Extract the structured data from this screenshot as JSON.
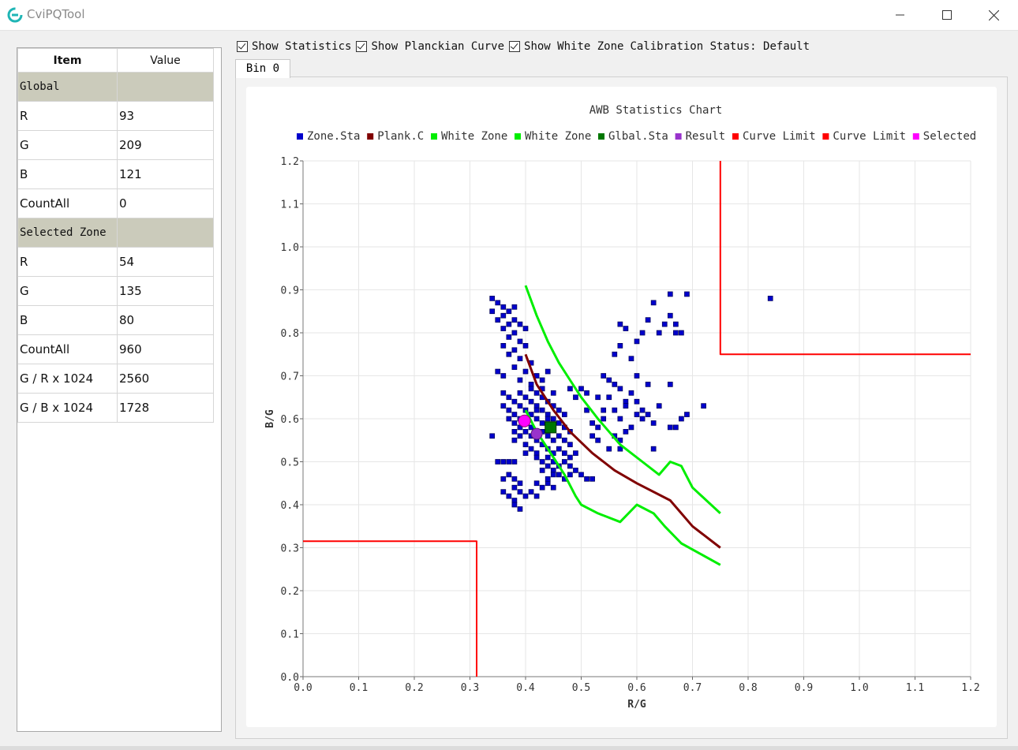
{
  "window": {
    "title": "CviPQTool",
    "accent_color": "#1fb5b5"
  },
  "toolbar": {
    "show_statistics": "Show Statistics",
    "show_planckian": "Show Planckian Curve",
    "show_white_zone": "Show White Zone",
    "status": "Calibration Status: Default"
  },
  "tabs": [
    {
      "label": "Bin 0"
    }
  ],
  "table": {
    "headers": [
      "Item",
      "Value"
    ],
    "rows": [
      {
        "section": true,
        "item": "Global",
        "value": ""
      },
      {
        "item": "R",
        "value": "93"
      },
      {
        "item": "G",
        "value": "209"
      },
      {
        "item": "B",
        "value": "121"
      },
      {
        "item": "CountAll",
        "value": "0"
      },
      {
        "section": true,
        "item": "Selected Zone",
        "value": ""
      },
      {
        "item": "R",
        "value": "54"
      },
      {
        "item": "G",
        "value": "135"
      },
      {
        "item": "B",
        "value": "80"
      },
      {
        "item": "CountAll",
        "value": "960"
      },
      {
        "item": "G / R x 1024",
        "value": "2560"
      },
      {
        "item": "G / B x 1024",
        "value": "1728"
      }
    ]
  },
  "chart_data": {
    "type": "scatter",
    "title": "AWB Statistics Chart",
    "xlabel": "R/G",
    "ylabel": "B/G",
    "xlim": [
      0.0,
      1.2
    ],
    "ylim": [
      0.0,
      1.2
    ],
    "x_ticks": [
      "0.0",
      "0.1",
      "0.2",
      "0.3",
      "0.4",
      "0.5",
      "0.6",
      "0.7",
      "0.8",
      "0.9",
      "1.0",
      "1.1",
      "1.2"
    ],
    "y_ticks": [
      "0.0",
      "0.1",
      "0.2",
      "0.3",
      "0.4",
      "0.5",
      "0.6",
      "0.7",
      "0.8",
      "0.9",
      "1.0",
      "1.1",
      "1.2"
    ],
    "grid": true,
    "legend_position": "top",
    "legend": [
      {
        "name": "Zone.Sta",
        "color": "#0000cc"
      },
      {
        "name": "Plank.C",
        "color": "#800000"
      },
      {
        "name": "White Zone",
        "color": "#00ee00"
      },
      {
        "name": "White Zone",
        "color": "#00ee00"
      },
      {
        "name": "Glbal.Sta",
        "color": "#007700"
      },
      {
        "name": "Result",
        "color": "#9933cc"
      },
      {
        "name": "Curve Limit",
        "color": "#ff0000"
      },
      {
        "name": "Curve Limit",
        "color": "#ff0000"
      },
      {
        "name": "Selected",
        "color": "#ff00ff"
      }
    ],
    "planckian_curve": [
      [
        0.4,
        0.75
      ],
      [
        0.42,
        0.68
      ],
      [
        0.45,
        0.62
      ],
      [
        0.48,
        0.57
      ],
      [
        0.52,
        0.52
      ],
      [
        0.56,
        0.48
      ],
      [
        0.6,
        0.45
      ],
      [
        0.66,
        0.41
      ],
      [
        0.7,
        0.35
      ],
      [
        0.75,
        0.3
      ]
    ],
    "white_zone_upper": [
      [
        0.4,
        0.91
      ],
      [
        0.42,
        0.84
      ],
      [
        0.44,
        0.78
      ],
      [
        0.46,
        0.73
      ],
      [
        0.48,
        0.69
      ],
      [
        0.5,
        0.65
      ],
      [
        0.53,
        0.6
      ],
      [
        0.57,
        0.54
      ],
      [
        0.61,
        0.5
      ],
      [
        0.64,
        0.47
      ],
      [
        0.66,
        0.5
      ],
      [
        0.68,
        0.49
      ],
      [
        0.7,
        0.44
      ],
      [
        0.75,
        0.38
      ]
    ],
    "white_zone_lower": [
      [
        0.4,
        0.62
      ],
      [
        0.42,
        0.57
      ],
      [
        0.45,
        0.51
      ],
      [
        0.47,
        0.47
      ],
      [
        0.49,
        0.42
      ],
      [
        0.5,
        0.4
      ],
      [
        0.53,
        0.38
      ],
      [
        0.57,
        0.36
      ],
      [
        0.6,
        0.4
      ],
      [
        0.63,
        0.38
      ],
      [
        0.65,
        0.35
      ],
      [
        0.68,
        0.31
      ],
      [
        0.75,
        0.26
      ]
    ],
    "curve_limit_low": [
      [
        0.0,
        0.315
      ],
      [
        0.312,
        0.315
      ],
      [
        0.312,
        0.0
      ]
    ],
    "curve_limit_high": [
      [
        0.75,
        1.2
      ],
      [
        0.75,
        0.75
      ],
      [
        1.2,
        0.75
      ]
    ],
    "global_sta": [
      0.445,
      0.58
    ],
    "result": [
      0.42,
      0.565
    ],
    "selected": [
      0.398,
      0.595
    ],
    "zone_sta_points": [
      [
        0.34,
        0.88
      ],
      [
        0.35,
        0.87
      ],
      [
        0.36,
        0.86
      ],
      [
        0.34,
        0.85
      ],
      [
        0.36,
        0.84
      ],
      [
        0.37,
        0.85
      ],
      [
        0.38,
        0.86
      ],
      [
        0.35,
        0.83
      ],
      [
        0.37,
        0.82
      ],
      [
        0.38,
        0.83
      ],
      [
        0.39,
        0.82
      ],
      [
        0.36,
        0.81
      ],
      [
        0.38,
        0.8
      ],
      [
        0.4,
        0.81
      ],
      [
        0.37,
        0.79
      ],
      [
        0.39,
        0.78
      ],
      [
        0.36,
        0.77
      ],
      [
        0.38,
        0.76
      ],
      [
        0.4,
        0.77
      ],
      [
        0.37,
        0.75
      ],
      [
        0.39,
        0.74
      ],
      [
        0.41,
        0.73
      ],
      [
        0.38,
        0.72
      ],
      [
        0.4,
        0.71
      ],
      [
        0.42,
        0.7
      ],
      [
        0.39,
        0.69
      ],
      [
        0.41,
        0.68
      ],
      [
        0.43,
        0.69
      ],
      [
        0.44,
        0.71
      ],
      [
        0.36,
        0.7
      ],
      [
        0.35,
        0.71
      ],
      [
        0.36,
        0.66
      ],
      [
        0.37,
        0.65
      ],
      [
        0.38,
        0.64
      ],
      [
        0.39,
        0.66
      ],
      [
        0.4,
        0.65
      ],
      [
        0.41,
        0.64
      ],
      [
        0.42,
        0.66
      ],
      [
        0.43,
        0.65
      ],
      [
        0.44,
        0.64
      ],
      [
        0.45,
        0.66
      ],
      [
        0.36,
        0.63
      ],
      [
        0.37,
        0.62
      ],
      [
        0.38,
        0.61
      ],
      [
        0.39,
        0.63
      ],
      [
        0.4,
        0.62
      ],
      [
        0.41,
        0.61
      ],
      [
        0.42,
        0.63
      ],
      [
        0.43,
        0.62
      ],
      [
        0.44,
        0.61
      ],
      [
        0.45,
        0.63
      ],
      [
        0.46,
        0.62
      ],
      [
        0.47,
        0.61
      ],
      [
        0.37,
        0.6
      ],
      [
        0.38,
        0.59
      ],
      [
        0.39,
        0.6
      ],
      [
        0.4,
        0.59
      ],
      [
        0.41,
        0.58
      ],
      [
        0.42,
        0.6
      ],
      [
        0.43,
        0.59
      ],
      [
        0.44,
        0.58
      ],
      [
        0.45,
        0.6
      ],
      [
        0.46,
        0.59
      ],
      [
        0.47,
        0.58
      ],
      [
        0.48,
        0.57
      ],
      [
        0.38,
        0.57
      ],
      [
        0.39,
        0.56
      ],
      [
        0.4,
        0.57
      ],
      [
        0.41,
        0.56
      ],
      [
        0.42,
        0.55
      ],
      [
        0.43,
        0.57
      ],
      [
        0.44,
        0.56
      ],
      [
        0.45,
        0.55
      ],
      [
        0.46,
        0.56
      ],
      [
        0.47,
        0.55
      ],
      [
        0.48,
        0.54
      ],
      [
        0.4,
        0.54
      ],
      [
        0.41,
        0.53
      ],
      [
        0.42,
        0.52
      ],
      [
        0.43,
        0.54
      ],
      [
        0.44,
        0.53
      ],
      [
        0.45,
        0.52
      ],
      [
        0.46,
        0.53
      ],
      [
        0.47,
        0.52
      ],
      [
        0.48,
        0.51
      ],
      [
        0.49,
        0.52
      ],
      [
        0.42,
        0.51
      ],
      [
        0.43,
        0.5
      ],
      [
        0.44,
        0.51
      ],
      [
        0.45,
        0.5
      ],
      [
        0.46,
        0.49
      ],
      [
        0.47,
        0.5
      ],
      [
        0.48,
        0.49
      ],
      [
        0.49,
        0.48
      ],
      [
        0.5,
        0.47
      ],
      [
        0.46,
        0.47
      ],
      [
        0.47,
        0.46
      ],
      [
        0.48,
        0.47
      ],
      [
        0.51,
        0.46
      ],
      [
        0.52,
        0.46
      ],
      [
        0.45,
        0.48
      ],
      [
        0.44,
        0.49
      ],
      [
        0.43,
        0.48
      ],
      [
        0.41,
        0.67
      ],
      [
        0.43,
        0.67
      ],
      [
        0.42,
        0.62
      ],
      [
        0.44,
        0.6
      ],
      [
        0.39,
        0.58
      ],
      [
        0.38,
        0.55
      ],
      [
        0.34,
        0.56
      ],
      [
        0.35,
        0.5
      ],
      [
        0.36,
        0.5
      ],
      [
        0.37,
        0.5
      ],
      [
        0.38,
        0.5
      ],
      [
        0.4,
        0.52
      ],
      [
        0.36,
        0.46
      ],
      [
        0.37,
        0.47
      ],
      [
        0.38,
        0.46
      ],
      [
        0.39,
        0.45
      ],
      [
        0.36,
        0.43
      ],
      [
        0.37,
        0.42
      ],
      [
        0.38,
        0.44
      ],
      [
        0.39,
        0.43
      ],
      [
        0.4,
        0.42
      ],
      [
        0.38,
        0.41
      ],
      [
        0.39,
        0.39
      ],
      [
        0.38,
        0.4
      ],
      [
        0.41,
        0.43
      ],
      [
        0.42,
        0.45
      ],
      [
        0.43,
        0.44
      ],
      [
        0.42,
        0.42
      ],
      [
        0.44,
        0.45
      ],
      [
        0.45,
        0.44
      ],
      [
        0.44,
        0.46
      ],
      [
        0.45,
        0.47
      ],
      [
        0.48,
        0.67
      ],
      [
        0.49,
        0.65
      ],
      [
        0.5,
        0.67
      ],
      [
        0.51,
        0.66
      ],
      [
        0.51,
        0.62
      ],
      [
        0.52,
        0.59
      ],
      [
        0.53,
        0.58
      ],
      [
        0.54,
        0.6
      ],
      [
        0.55,
        0.65
      ],
      [
        0.56,
        0.62
      ],
      [
        0.57,
        0.6
      ],
      [
        0.58,
        0.64
      ],
      [
        0.59,
        0.66
      ],
      [
        0.6,
        0.64
      ],
      [
        0.6,
        0.61
      ],
      [
        0.61,
        0.62
      ],
      [
        0.62,
        0.61
      ],
      [
        0.63,
        0.59
      ],
      [
        0.58,
        0.57
      ],
      [
        0.56,
        0.56
      ],
      [
        0.55,
        0.53
      ],
      [
        0.57,
        0.55
      ],
      [
        0.59,
        0.58
      ],
      [
        0.54,
        0.62
      ],
      [
        0.53,
        0.65
      ],
      [
        0.55,
        0.69
      ],
      [
        0.57,
        0.67
      ],
      [
        0.6,
        0.7
      ],
      [
        0.62,
        0.68
      ],
      [
        0.53,
        0.55
      ],
      [
        0.52,
        0.56
      ],
      [
        0.56,
        0.68
      ],
      [
        0.58,
        0.63
      ],
      [
        0.61,
        0.6
      ],
      [
        0.57,
        0.53
      ],
      [
        0.54,
        0.7
      ],
      [
        0.56,
        0.75
      ],
      [
        0.57,
        0.77
      ],
      [
        0.57,
        0.82
      ],
      [
        0.58,
        0.81
      ],
      [
        0.59,
        0.74
      ],
      [
        0.6,
        0.78
      ],
      [
        0.61,
        0.8
      ],
      [
        0.62,
        0.83
      ],
      [
        0.63,
        0.87
      ],
      [
        0.64,
        0.8
      ],
      [
        0.65,
        0.82
      ],
      [
        0.66,
        0.84
      ],
      [
        0.67,
        0.82
      ],
      [
        0.67,
        0.8
      ],
      [
        0.68,
        0.8
      ],
      [
        0.66,
        0.89
      ],
      [
        0.69,
        0.89
      ],
      [
        0.64,
        0.63
      ],
      [
        0.66,
        0.58
      ],
      [
        0.67,
        0.58
      ],
      [
        0.68,
        0.6
      ],
      [
        0.69,
        0.61
      ],
      [
        0.72,
        0.63
      ],
      [
        0.66,
        0.68
      ],
      [
        0.63,
        0.53
      ],
      [
        0.84,
        0.88
      ]
    ]
  }
}
